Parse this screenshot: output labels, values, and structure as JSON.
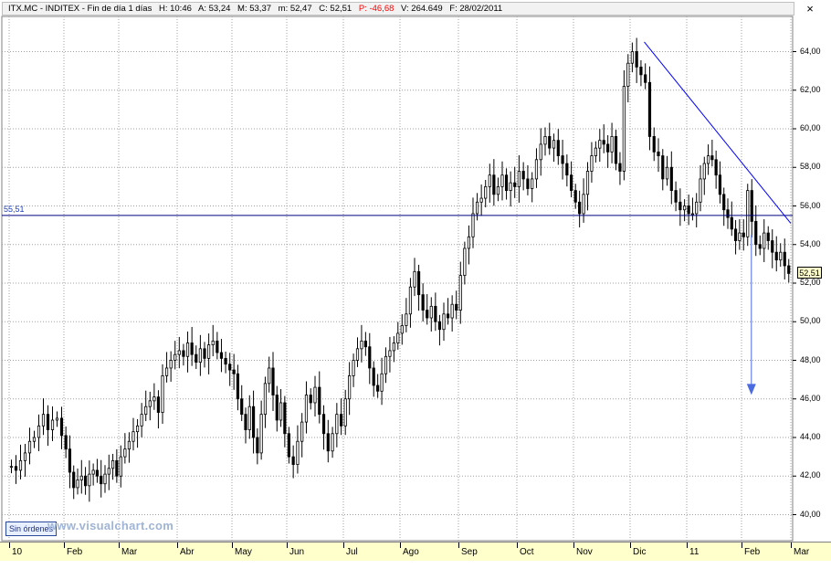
{
  "header": {
    "ticker": "ITX.MC - INDITEX - Fin de día 1 días",
    "high": "H: 10:46",
    "open": "A: 53,24",
    "mid": "M: 53,37",
    "low": "m: 52,47",
    "close": "C: 52,51",
    "pct": "P: -46,68",
    "volume": "V: 264.649",
    "date": "F: 28/02/2011"
  },
  "close_icon": "close-icon",
  "reference_line_label": "55,51",
  "last_price_label": "52,51",
  "orders_button": "Sin órdenes",
  "watermark": "www.visualchart.com",
  "colors": {
    "candle": "#000000",
    "reference": "#000080",
    "trendline": "#0000ff",
    "target_arrow": "#4b6be0",
    "axis_bg": "#ffffcc"
  },
  "chart_data": {
    "type": "candlestick",
    "title": "ITX.MC - INDITEX - Fin de día 1 días",
    "ylim": [
      39,
      65
    ],
    "y_ticks": [
      "40,00",
      "42,00",
      "44,00",
      "46,00",
      "48,00",
      "50,00",
      "52,00",
      "54,00",
      "56,00",
      "58,00",
      "60,00",
      "62,00",
      "64,00"
    ],
    "x_ticks": [
      "10",
      "Feb",
      "Mar",
      "Abr",
      "May",
      "Jun",
      "Jul",
      "Ago",
      "Sep",
      "Oct",
      "Nov",
      "Dic",
      "11",
      "Feb",
      "Mar"
    ],
    "grid": true,
    "reference_line": {
      "value": 55.51,
      "label": "55,51"
    },
    "trendline": {
      "from": {
        "month_index": 11.25,
        "price": 64.5
      },
      "to": {
        "month_index": 14.0,
        "price": 55.1
      }
    },
    "target_arrow": {
      "month_index": 13.2,
      "from_price": 54.5,
      "to_price": 46.3
    },
    "last_close": 52.51,
    "closes_by_month": [
      {
        "month": "Ene 10",
        "closes": [
          42.5,
          42.3,
          42.8,
          43.2,
          43.8,
          44.0,
          44.6,
          45.2,
          44.4,
          44.9,
          45.0,
          44.1
        ]
      },
      {
        "month": "Feb 10",
        "closes": [
          43.4,
          42.2,
          41.4,
          41.8,
          42.0,
          41.5,
          42.1,
          42.3,
          42.0,
          41.6,
          42.1,
          42.4,
          42.8,
          42.0
        ]
      },
      {
        "month": "Mar 10",
        "closes": [
          43.0,
          43.4,
          43.8,
          44.3,
          44.6,
          45.2,
          45.6,
          45.9,
          46.1,
          45.3,
          47.2,
          47.6,
          48.0,
          48.3
        ]
      },
      {
        "month": "Abr 10",
        "closes": [
          48.5,
          48.2,
          48.9,
          48.3,
          47.9,
          48.6,
          48.1,
          48.8,
          49.0,
          48.4,
          48.1,
          47.8,
          47.5
        ]
      },
      {
        "month": "May 10",
        "closes": [
          47.3,
          46.0,
          45.2,
          44.4,
          45.6,
          44.0,
          43.2,
          45.2,
          46.8,
          47.6,
          46.2,
          44.9,
          45.8,
          44.2
        ]
      },
      {
        "month": "Jun 10",
        "closes": [
          43.0,
          42.6,
          43.8,
          44.8,
          46.2,
          45.8,
          46.6,
          45.2,
          44.2,
          43.3,
          44.2,
          45.2,
          44.6
        ]
      },
      {
        "month": "Jul 10",
        "closes": [
          46.0,
          47.2,
          48.0,
          48.6,
          49.0,
          48.7,
          47.6,
          46.7,
          46.4,
          47.3,
          48.2,
          48.5,
          48.9,
          49.4
        ]
      },
      {
        "month": "Ago 10",
        "closes": [
          49.8,
          50.4,
          51.8,
          52.6,
          51.4,
          50.6,
          50.2,
          50.8,
          50.0,
          49.6,
          50.4,
          50.2,
          50.9,
          50.6
        ]
      },
      {
        "month": "Sep 10",
        "closes": [
          52.4,
          53.8,
          54.4,
          55.6,
          56.2,
          56.4,
          57.0,
          57.6,
          56.6,
          57.0,
          57.6,
          56.8,
          57.2,
          57.0
        ]
      },
      {
        "month": "Oct 10",
        "closes": [
          57.8,
          57.4,
          56.9,
          57.4,
          58.4,
          59.2,
          59.6,
          59.0,
          59.4,
          58.6,
          58.2,
          57.6,
          56.8
        ]
      },
      {
        "month": "Nov 10",
        "closes": [
          56.2,
          55.6,
          56.6,
          57.8,
          58.6,
          59.0,
          59.4,
          59.2,
          58.8,
          59.6,
          58.2,
          57.8,
          62.2,
          63.4
        ]
      },
      {
        "month": "Dic 10",
        "closes": [
          64.0,
          63.2,
          62.8,
          62.4,
          59.6,
          58.8,
          58.6,
          57.4,
          58.0,
          56.8,
          56.2,
          55.8,
          56.0
        ]
      },
      {
        "month": "Ene 11",
        "closes": [
          55.6,
          55.6,
          56.2,
          57.4,
          58.2,
          58.6,
          58.4,
          57.6,
          56.6,
          55.8,
          55.4,
          54.8,
          54.2,
          54.6
        ]
      },
      {
        "month": "Feb 11",
        "closes": [
          54.4,
          56.8,
          55.2,
          54.0,
          53.8,
          54.6,
          54.2,
          53.6,
          53.2,
          53.6,
          52.9,
          52.5
        ]
      }
    ]
  }
}
